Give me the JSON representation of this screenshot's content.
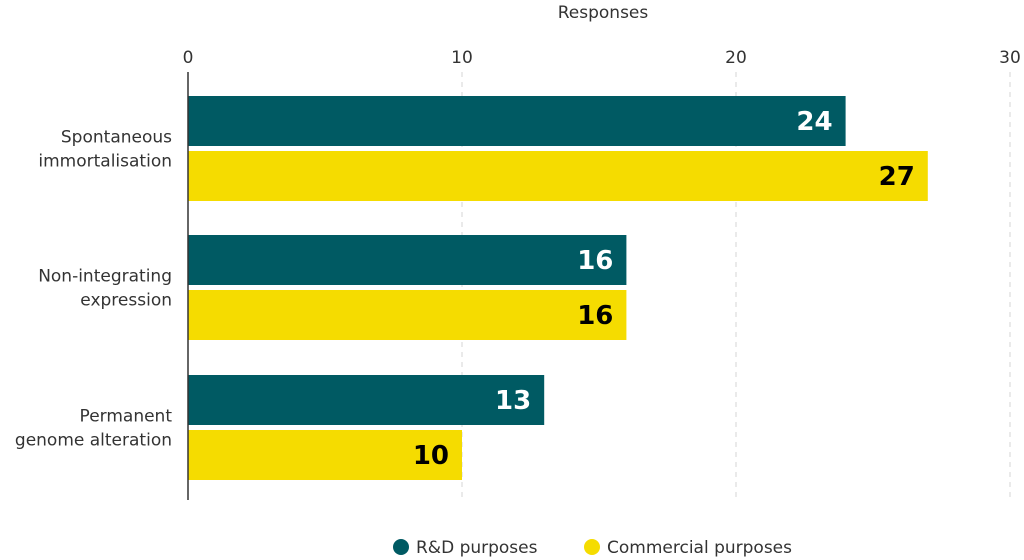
{
  "chart_data": {
    "type": "bar",
    "orientation": "horizontal",
    "title": "",
    "xlabel": "Responses",
    "ylabel": "",
    "xlim": [
      0,
      30
    ],
    "ticks": [
      0,
      10,
      20,
      30
    ],
    "grid": true,
    "categories": [
      [
        "Spontaneous",
        "immortalisation"
      ],
      [
        "Non-integrating",
        "expression"
      ],
      [
        "Permanent",
        "genome alteration"
      ]
    ],
    "series": [
      {
        "name": "R&D purposes",
        "color": "#005a63",
        "label_color": "#ffffff",
        "values": [
          24,
          16,
          13
        ]
      },
      {
        "name": "Commercial purposes",
        "color": "#f5dc00",
        "label_color": "#000000",
        "values": [
          27,
          16,
          10
        ]
      }
    ],
    "legend_position": "bottom"
  }
}
